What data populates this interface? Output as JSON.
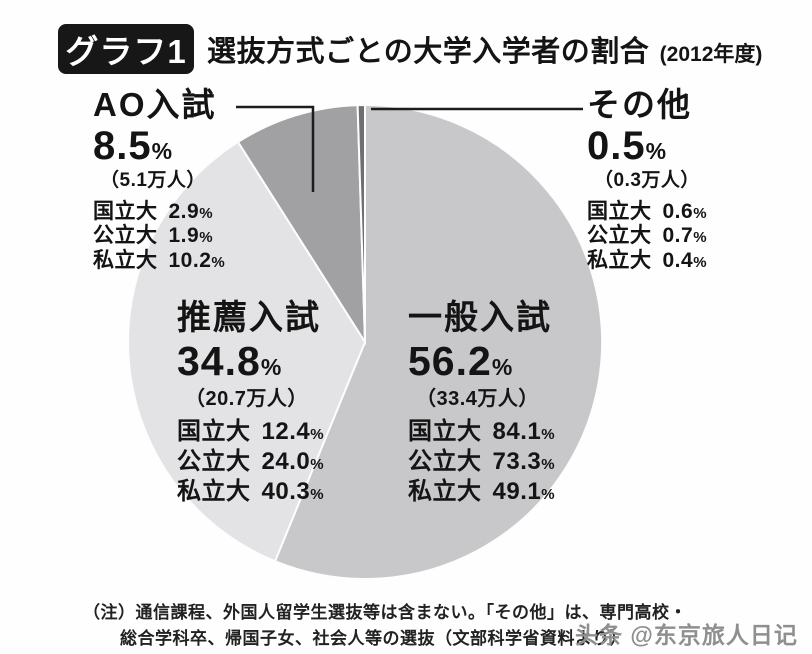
{
  "header": {
    "badge": "グラフ1",
    "title": "選抜方式ごとの大学入学者の割合",
    "year_note": "(2012年度)"
  },
  "symbols": {
    "percent": "%"
  },
  "chart_data": {
    "type": "pie",
    "title": "選抜方式ごとの大学入学者の割合（2012年度）",
    "unit": "%",
    "direction": "clockwise",
    "start_angle_deg": 0,
    "legend_position": "callout-labels",
    "slices": [
      {
        "key": "ippan",
        "label": "一般入試",
        "value": 56.2,
        "pct": "56.2",
        "people": "（33.4万人）",
        "color": "#c8c8ca",
        "rows": [
          {
            "label": "国立大",
            "value": "84.1"
          },
          {
            "label": "公立大",
            "value": "73.3"
          },
          {
            "label": "私立大",
            "value": "49.1"
          }
        ]
      },
      {
        "key": "suisen",
        "label": "推薦入試",
        "value": 34.8,
        "pct": "34.8",
        "people": "（20.7万人）",
        "color": "#e3e3e5",
        "rows": [
          {
            "label": "国立大",
            "value": "12.4"
          },
          {
            "label": "公立大",
            "value": "24.0"
          },
          {
            "label": "私立大",
            "value": "40.3"
          }
        ]
      },
      {
        "key": "ao",
        "label": "AO入試",
        "value": 8.5,
        "pct": "8.5",
        "people": "（5.1万人）",
        "color": "#a1a1a3",
        "rows": [
          {
            "label": "国立大",
            "value": "2.9"
          },
          {
            "label": "公立大",
            "value": "1.9"
          },
          {
            "label": "私立大",
            "value": "10.2"
          }
        ]
      },
      {
        "key": "sonota",
        "label": "その他",
        "value": 0.5,
        "pct": "0.5",
        "people": "（0.3万人）",
        "color": "#6f6f72",
        "rows": [
          {
            "label": "国立大",
            "value": "0.6"
          },
          {
            "label": "公立大",
            "value": "0.7"
          },
          {
            "label": "私立大",
            "value": "0.4"
          }
        ]
      }
    ]
  },
  "footnote": {
    "line1": "（注）通信課程、外国人留学生選抜等は含まない。「その他」は、専門高校・",
    "line2": "総合学科卒、帰国子女、社会人等の選抜（文部科学省資料より）"
  },
  "watermark": "头条 @东京旅人日记"
}
